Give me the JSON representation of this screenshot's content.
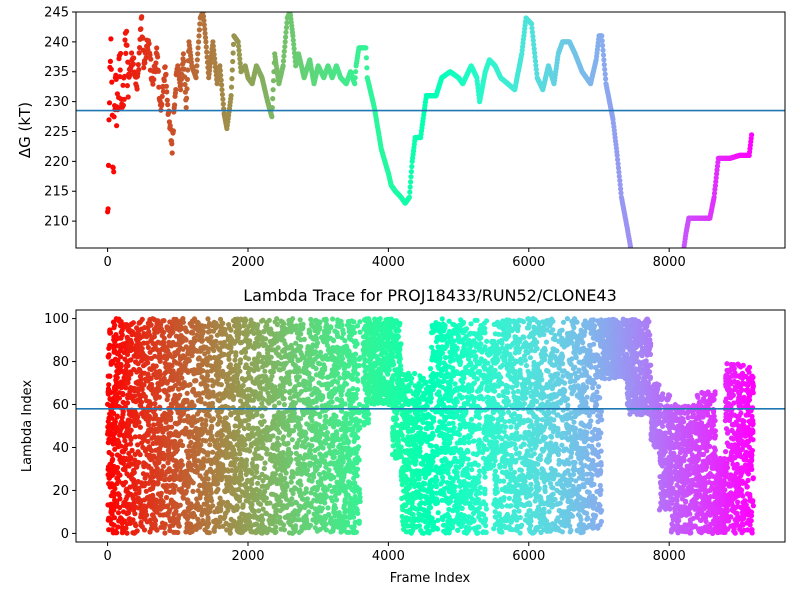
{
  "chart_data": [
    {
      "type": "scatter",
      "title": "",
      "xlabel": "",
      "ylabel": "ΔG (kT)",
      "xlim": [
        -450,
        9650
      ],
      "ylim": [
        205.5,
        245
      ],
      "xticks": [
        0,
        2000,
        4000,
        6000,
        8000
      ],
      "yticks": [
        210,
        215,
        220,
        225,
        230,
        235,
        240,
        245
      ],
      "hline": 228.5,
      "colormap": "rainbow (color runs from red at the first frame to violet at the last frame)",
      "grid": false,
      "anchors": [
        [
          0,
          210
        ],
        [
          20,
          222
        ],
        [
          40,
          240
        ],
        [
          60,
          230
        ],
        [
          80,
          216
        ],
        [
          100,
          232
        ],
        [
          140,
          229
        ],
        [
          180,
          236
        ],
        [
          220,
          228
        ],
        [
          260,
          240
        ],
        [
          300,
          234
        ],
        [
          360,
          238
        ],
        [
          420,
          232
        ],
        [
          480,
          244
        ],
        [
          520,
          236
        ],
        [
          580,
          240
        ],
        [
          640,
          233
        ],
        [
          700,
          238
        ],
        [
          760,
          228
        ],
        [
          820,
          236
        ],
        [
          880,
          226
        ],
        [
          920,
          222.5
        ],
        [
          960,
          232
        ],
        [
          1000,
          236
        ],
        [
          1040,
          232
        ],
        [
          1080,
          238
        ],
        [
          1120,
          229
        ],
        [
          1160,
          240
        ],
        [
          1200,
          236
        ],
        [
          1260,
          234
        ],
        [
          1320,
          244
        ],
        [
          1360,
          245
        ],
        [
          1400,
          240
        ],
        [
          1440,
          234
        ],
        [
          1500,
          240
        ],
        [
          1560,
          233
        ],
        [
          1600,
          236
        ],
        [
          1660,
          228
        ],
        [
          1700,
          225.5
        ],
        [
          1760,
          231
        ],
        [
          1800,
          241
        ],
        [
          1860,
          240
        ],
        [
          1900,
          235
        ],
        [
          1960,
          236
        ],
        [
          2000,
          234
        ],
        [
          2060,
          233
        ],
        [
          2120,
          236
        ],
        [
          2200,
          234
        ],
        [
          2280,
          230
        ],
        [
          2340,
          227.5
        ],
        [
          2380,
          238
        ],
        [
          2440,
          233
        ],
        [
          2500,
          236
        ],
        [
          2560,
          244
        ],
        [
          2600,
          245
        ],
        [
          2640,
          241
        ],
        [
          2680,
          236
        ],
        [
          2720,
          238
        ],
        [
          2800,
          234
        ],
        [
          2880,
          237
        ],
        [
          2940,
          233
        ],
        [
          3000,
          236
        ],
        [
          3080,
          234
        ],
        [
          3140,
          236
        ],
        [
          3200,
          234
        ],
        [
          3260,
          236
        ],
        [
          3320,
          234
        ],
        [
          3400,
          233
        ],
        [
          3460,
          235
        ],
        [
          3520,
          233
        ],
        [
          3540,
          236
        ],
        [
          3580,
          239
        ],
        [
          3680,
          239
        ],
        [
          3700,
          234
        ],
        [
          3800,
          229
        ],
        [
          3900,
          222
        ],
        [
          4000,
          218
        ],
        [
          4040,
          216
        ],
        [
          4100,
          215
        ],
        [
          4180,
          214
        ],
        [
          4240,
          213
        ],
        [
          4300,
          214
        ],
        [
          4340,
          220
        ],
        [
          4380,
          224
        ],
        [
          4460,
          224
        ],
        [
          4540,
          231
        ],
        [
          4680,
          231
        ],
        [
          4760,
          234
        ],
        [
          4880,
          235
        ],
        [
          5000,
          234
        ],
        [
          5060,
          233
        ],
        [
          5100,
          234
        ],
        [
          5180,
          236
        ],
        [
          5260,
          234
        ],
        [
          5300,
          230
        ],
        [
          5380,
          235
        ],
        [
          5440,
          237
        ],
        [
          5520,
          236
        ],
        [
          5600,
          234
        ],
        [
          5700,
          233
        ],
        [
          5800,
          232
        ],
        [
          5900,
          238
        ],
        [
          5960,
          244
        ],
        [
          6040,
          243
        ],
        [
          6120,
          234
        ],
        [
          6200,
          232
        ],
        [
          6280,
          236
        ],
        [
          6360,
          233
        ],
        [
          6420,
          238
        ],
        [
          6480,
          240
        ],
        [
          6580,
          240
        ],
        [
          6660,
          238
        ],
        [
          6760,
          235
        ],
        [
          6880,
          233
        ],
        [
          6960,
          237
        ],
        [
          7000,
          241
        ],
        [
          7040,
          241
        ],
        [
          7100,
          233
        ],
        [
          7200,
          227
        ],
        [
          7260,
          221
        ],
        [
          7320,
          214
        ],
        [
          7400,
          209
        ],
        [
          7460,
          205
        ],
        [
          7480,
          203
        ],
        [
          8180,
          203
        ],
        [
          8240,
          208
        ],
        [
          8280,
          210.5
        ],
        [
          8500,
          210.5
        ],
        [
          8580,
          210.5
        ],
        [
          8640,
          214
        ],
        [
          8700,
          220.5
        ],
        [
          8860,
          220.5
        ],
        [
          9000,
          221
        ],
        [
          9140,
          221
        ],
        [
          9180,
          225
        ]
      ]
    },
    {
      "type": "scatter",
      "title": "Lambda Trace for PROJ18433/RUN52/CLONE43",
      "xlabel": "Frame Index",
      "ylabel": "Lambda Index",
      "xlim": [
        -450,
        9650
      ],
      "ylim": [
        -4,
        104
      ],
      "xticks": [
        0,
        2000,
        4000,
        6000,
        8000
      ],
      "yticks": [
        0,
        20,
        40,
        60,
        80,
        100
      ],
      "hline": 58,
      "colormap": "rainbow (color runs from red at the first frame to violet at the last frame)",
      "grid": false,
      "segments": [
        {
          "x": [
            0,
            3600
          ],
          "lo": 0,
          "hi": 100
        },
        {
          "x": [
            3640,
            3720
          ],
          "lo": 50,
          "hi": 100
        },
        {
          "x": [
            3720,
            4060
          ],
          "lo": 60,
          "hi": 100
        },
        {
          "x": [
            4060,
            4180
          ],
          "lo": 35,
          "hi": 100
        },
        {
          "x": [
            4180,
            4600
          ],
          "lo": 0,
          "hi": 75
        },
        {
          "x": [
            4600,
            5400
          ],
          "lo": 0,
          "hi": 100
        },
        {
          "x": [
            5400,
            5500
          ],
          "lo": 30,
          "hi": 90
        },
        {
          "x": [
            5500,
            7040
          ],
          "lo": 0,
          "hi": 100
        },
        {
          "x": [
            7040,
            7400
          ],
          "lo": 72,
          "hi": 100
        },
        {
          "x": [
            7400,
            7740
          ],
          "lo": 55,
          "hi": 100
        },
        {
          "x": [
            7740,
            7860
          ],
          "lo": 40,
          "hi": 70
        },
        {
          "x": [
            7860,
            8020
          ],
          "lo": 10,
          "hi": 65
        },
        {
          "x": [
            8020,
            8400
          ],
          "lo": 0,
          "hi": 60
        },
        {
          "x": [
            8400,
            8660
          ],
          "lo": 0,
          "hi": 66
        },
        {
          "x": [
            8660,
            8800
          ],
          "lo": 0,
          "hi": 35
        },
        {
          "x": [
            8800,
            9200
          ],
          "lo": 0,
          "hi": 80
        }
      ]
    }
  ]
}
